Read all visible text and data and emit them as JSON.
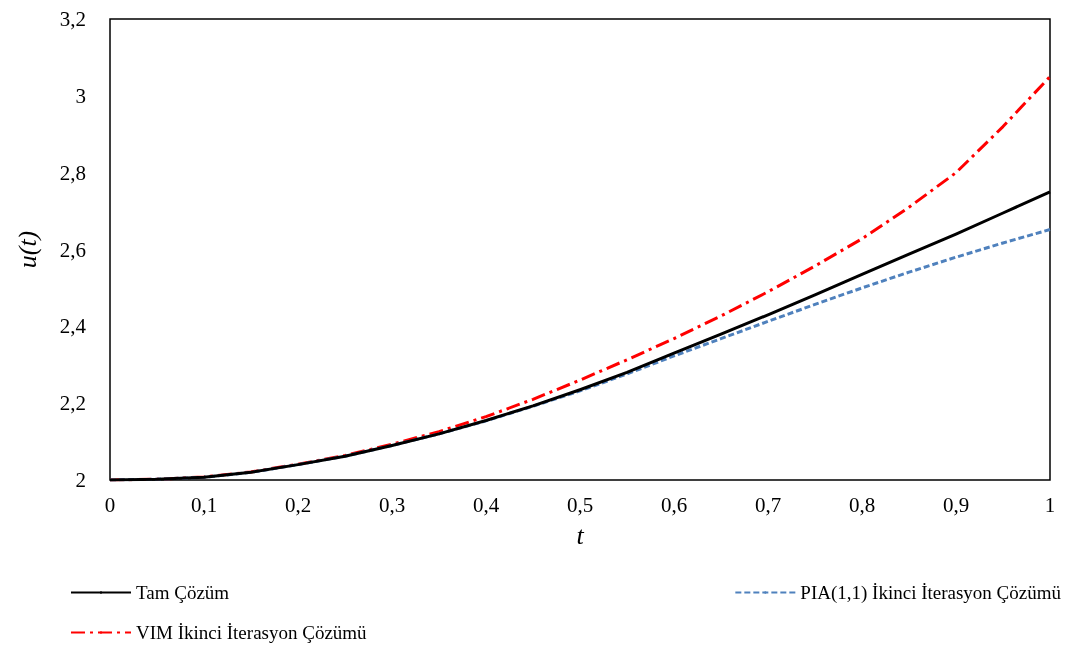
{
  "chart_data": {
    "type": "line",
    "xlabel": "t",
    "ylabel": "u(t)",
    "x": [
      0,
      0.05,
      0.1,
      0.15,
      0.2,
      0.25,
      0.3,
      0.35,
      0.4,
      0.45,
      0.5,
      0.55,
      0.6,
      0.65,
      0.7,
      0.75,
      0.8,
      0.85,
      0.9,
      0.95,
      1
    ],
    "series": [
      {
        "name": "Tam Çözüm",
        "color": "#000000",
        "line_style": "solid",
        "values": [
          2,
          2.002,
          2.007,
          2.02,
          2.04,
          2.062,
          2.09,
          2.12,
          2.155,
          2.193,
          2.235,
          2.28,
          2.33,
          2.38,
          2.43,
          2.482,
          2.535,
          2.588,
          2.64,
          2.695,
          2.75
        ]
      },
      {
        "name": "PIA(1,1) İkinci İterasyon Çözümü",
        "color": "#4f81bd",
        "line_style": "dashed",
        "values": [
          2,
          2.002,
          2.007,
          2.02,
          2.04,
          2.062,
          2.09,
          2.12,
          2.154,
          2.192,
          2.232,
          2.276,
          2.323,
          2.368,
          2.413,
          2.457,
          2.5,
          2.541,
          2.58,
          2.617,
          2.652
        ]
      },
      {
        "name": "VIM İkinci İterasyon Çözümü",
        "color": "#ff0000",
        "line_style": "dashdot",
        "values": [
          2,
          2.002,
          2.008,
          2.021,
          2.041,
          2.064,
          2.093,
          2.126,
          2.165,
          2.21,
          2.26,
          2.313,
          2.368,
          2.427,
          2.49,
          2.557,
          2.628,
          2.71,
          2.8,
          2.92,
          3.05
        ]
      }
    ],
    "xlim": [
      0,
      1
    ],
    "ylim": [
      2,
      3.2
    ],
    "xticks": [
      0,
      {
        "value": 0.1,
        "label": "0,1"
      },
      {
        "value": 0.2,
        "label": "0,2"
      },
      {
        "value": 0.3,
        "label": "0,3"
      },
      {
        "value": 0.4,
        "label": "0,4"
      },
      {
        "value": 0.5,
        "label": "0,5"
      },
      {
        "value": 0.6,
        "label": "0,6"
      },
      {
        "value": 0.7,
        "label": "0,7"
      },
      {
        "value": 0.8,
        "label": "0,8"
      },
      {
        "value": 0.9,
        "label": "0,9"
      },
      1
    ],
    "yticks": [
      2,
      {
        "value": 2.2,
        "label": "2,2"
      },
      {
        "value": 2.4,
        "label": "2,4"
      },
      {
        "value": 2.6,
        "label": "2,6"
      },
      {
        "value": 2.8,
        "label": "2,8"
      },
      3,
      {
        "value": 3.2,
        "label": "3,2"
      }
    ],
    "grid": false,
    "legend": "bottom",
    "marker": "none"
  }
}
